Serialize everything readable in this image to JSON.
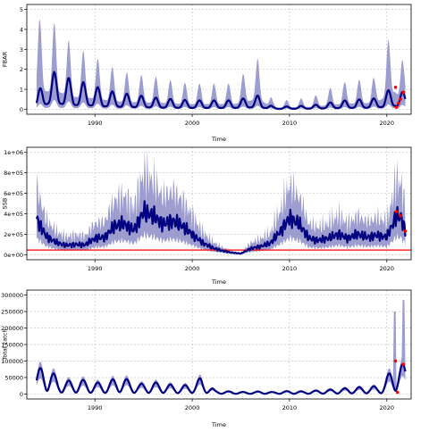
{
  "chart_data": [
    {
      "type": "line",
      "ylabel": "FBAR",
      "xlabel": "Time",
      "xlim": [
        1983,
        2022.5
      ],
      "ylim": [
        -0.25,
        5.25
      ],
      "yticks": [
        "0",
        "1",
        "2",
        "3",
        "4",
        "5"
      ],
      "ytick_values": [
        0,
        1,
        2,
        3,
        4,
        5
      ],
      "xticks": [
        "1990",
        "2000",
        "2010",
        "2020"
      ],
      "xtick_values": [
        1990,
        2000,
        2010,
        2020
      ],
      "grid": true,
      "reference_line": null,
      "colors": {
        "band": "#8c8cc8",
        "line": "#000080",
        "points": "#ff0000",
        "ref": "#ff0000"
      },
      "series": [
        {
          "name": "",
          "values": []
        }
      ],
      "envelope": {
        "peaks": [
          [
            1984.8,
            4.55
          ],
          [
            1986.3,
            4.3
          ],
          [
            1987.8,
            3.1
          ],
          [
            1989.3,
            2.9
          ],
          [
            1990.8,
            2.4
          ],
          [
            1992.3,
            2.0
          ],
          [
            1993.8,
            1.8
          ],
          [
            1995.3,
            1.7
          ],
          [
            1996.8,
            1.6
          ],
          [
            1998.3,
            1.4
          ],
          [
            1999.8,
            1.3
          ],
          [
            2001.3,
            1.3
          ],
          [
            2002.8,
            1.3
          ],
          [
            2004.3,
            1.3
          ],
          [
            2006.8,
            2.6
          ],
          [
            2008.3,
            0.4
          ],
          [
            2010.3,
            0.5
          ],
          [
            2012.3,
            0.6
          ],
          [
            2014.3,
            1.1
          ],
          [
            2015.8,
            1.4
          ],
          [
            2017.3,
            1.5
          ],
          [
            2018.8,
            1.6
          ],
          [
            2020.8,
            4.4
          ],
          [
            2021.7,
            2.3
          ]
        ],
        "trend_start": 0.7,
        "trend_end": 0.85
      },
      "central_peaks": [
        [
          1984.0,
          0.7
        ],
        [
          1985.2,
          1.9
        ],
        [
          1986.4,
          1.85
        ],
        [
          1987.9,
          1.4
        ],
        [
          1989.3,
          1.35
        ],
        [
          1990.8,
          1.0
        ],
        [
          1992.3,
          0.85
        ],
        [
          1993.8,
          0.75
        ],
        [
          1995.3,
          0.65
        ],
        [
          1996.8,
          0.55
        ],
        [
          1998.3,
          0.5
        ],
        [
          1999.8,
          0.45
        ],
        [
          2001.3,
          0.45
        ],
        [
          2002.8,
          0.45
        ],
        [
          2004.3,
          0.45
        ],
        [
          2006.8,
          0.7
        ],
        [
          2008.3,
          0.12
        ],
        [
          2010.3,
          0.15
        ],
        [
          2012.3,
          0.2
        ],
        [
          2014.3,
          0.35
        ],
        [
          2015.8,
          0.45
        ],
        [
          2017.3,
          0.5
        ],
        [
          2018.8,
          0.55
        ],
        [
          2020.8,
          1.15
        ],
        [
          2021.7,
          0.85
        ]
      ],
      "points": [
        [
          2020.9,
          1.1
        ],
        [
          2021.0,
          0.1
        ],
        [
          2021.2,
          0.3
        ],
        [
          2021.4,
          0.5
        ],
        [
          2021.7,
          0.85
        ]
      ]
    },
    {
      "type": "line",
      "ylabel": "SSB",
      "xlabel": "Time",
      "xlim": [
        1983,
        2022.5
      ],
      "ylim": [
        -50000,
        1050000
      ],
      "yticks": [
        "0e+00",
        "2e+05",
        "4e+05",
        "6e+05",
        "8e+05",
        "1e+06"
      ],
      "ytick_values": [
        0,
        200000,
        400000,
        600000,
        800000,
        1000000
      ],
      "xticks": [
        "1990",
        "2000",
        "2010",
        "2020"
      ],
      "xtick_values": [
        1990,
        2000,
        2010,
        2020
      ],
      "grid": true,
      "reference_line": 45000,
      "colors": {
        "band": "#8c8cc8",
        "line": "#000080",
        "points": "#ff0000",
        "ref": "#ff0000"
      },
      "central": [
        [
          1984.0,
          350000
        ],
        [
          1985.0,
          180000
        ],
        [
          1986.0,
          120000
        ],
        [
          1987.0,
          90000
        ],
        [
          1988.0,
          100000
        ],
        [
          1989.0,
          95000
        ],
        [
          1990.0,
          160000
        ],
        [
          1991.0,
          170000
        ],
        [
          1992.0,
          280000
        ],
        [
          1993.0,
          300000
        ],
        [
          1994.0,
          240000
        ],
        [
          1995.0,
          420000
        ],
        [
          1996.0,
          380000
        ],
        [
          1997.0,
          300000
        ],
        [
          1998.0,
          330000
        ],
        [
          1999.0,
          280000
        ],
        [
          2000.0,
          200000
        ],
        [
          2001.0,
          120000
        ],
        [
          2002.0,
          70000
        ],
        [
          2003.0,
          40000
        ],
        [
          2004.0,
          20000
        ],
        [
          2005.0,
          10000
        ],
        [
          2006.0,
          60000
        ],
        [
          2007.0,
          80000
        ],
        [
          2008.0,
          110000
        ],
        [
          2009.0,
          220000
        ],
        [
          2010.0,
          360000
        ],
        [
          2011.0,
          300000
        ],
        [
          2012.0,
          160000
        ],
        [
          2013.0,
          140000
        ],
        [
          2014.0,
          160000
        ],
        [
          2015.0,
          200000
        ],
        [
          2016.0,
          160000
        ],
        [
          2017.0,
          200000
        ],
        [
          2018.0,
          170000
        ],
        [
          2019.0,
          190000
        ],
        [
          2020.0,
          170000
        ],
        [
          2021.0,
          380000
        ],
        [
          2021.5,
          360000
        ],
        [
          2021.9,
          230000
        ]
      ],
      "band_upper_factor": 1.9,
      "band_lower_factor": 0.45,
      "points": [
        [
          2021.0,
          420000
        ],
        [
          2021.4,
          380000
        ],
        [
          2021.9,
          230000
        ]
      ]
    },
    {
      "type": "line",
      "ylabel": "Total catch",
      "xlabel": "Time",
      "xlim": [
        1983,
        2022.5
      ],
      "ylim": [
        -15000,
        315000
      ],
      "yticks": [
        "0",
        "50000",
        "100000",
        "150000",
        "200000",
        "250000",
        "300000"
      ],
      "ytick_values": [
        0,
        50000,
        100000,
        150000,
        200000,
        250000,
        300000
      ],
      "xticks": [
        "1990",
        "2000",
        "2010",
        "2020"
      ],
      "xtick_values": [
        1990,
        2000,
        2010,
        2020
      ],
      "grid": true,
      "reference_line": null,
      "colors": {
        "band": "#8c8cc8",
        "line": "#000080",
        "points": "#ff0000",
        "ref": "#ff0000"
      },
      "central_peaks": [
        [
          1984.0,
          65000
        ],
        [
          1984.9,
          100000
        ],
        [
          1986.2,
          45000
        ],
        [
          1987.6,
          40000
        ],
        [
          1988.5,
          45000
        ],
        [
          1989.9,
          35000
        ],
        [
          1991.3,
          35000
        ],
        [
          1992.4,
          55000
        ],
        [
          1993.3,
          45000
        ],
        [
          1994.5,
          30000
        ],
        [
          1995.5,
          35000
        ],
        [
          1996.7,
          35000
        ],
        [
          1997.5,
          30000
        ],
        [
          1998.8,
          25000
        ],
        [
          1999.9,
          30000
        ],
        [
          2000.9,
          50000
        ],
        [
          2002.4,
          10000
        ],
        [
          2003.8,
          8000
        ],
        [
          2005.5,
          6000
        ],
        [
          2007.0,
          8000
        ],
        [
          2008.3,
          6000
        ],
        [
          2009.8,
          9000
        ],
        [
          2011.5,
          8000
        ],
        [
          2013.3,
          12000
        ],
        [
          2014.8,
          15000
        ],
        [
          2016.5,
          20000
        ],
        [
          2018.0,
          22000
        ],
        [
          2019.5,
          25000
        ],
        [
          2020.9,
          100000
        ],
        [
          2021.7,
          90000
        ]
      ],
      "points": [
        [
          2020.9,
          100000
        ],
        [
          2021.1,
          5000
        ],
        [
          2021.7,
          90000
        ]
      ],
      "band_spikes": [
        [
          2020.8,
          250000
        ],
        [
          2021.7,
          285000
        ]
      ]
    }
  ]
}
